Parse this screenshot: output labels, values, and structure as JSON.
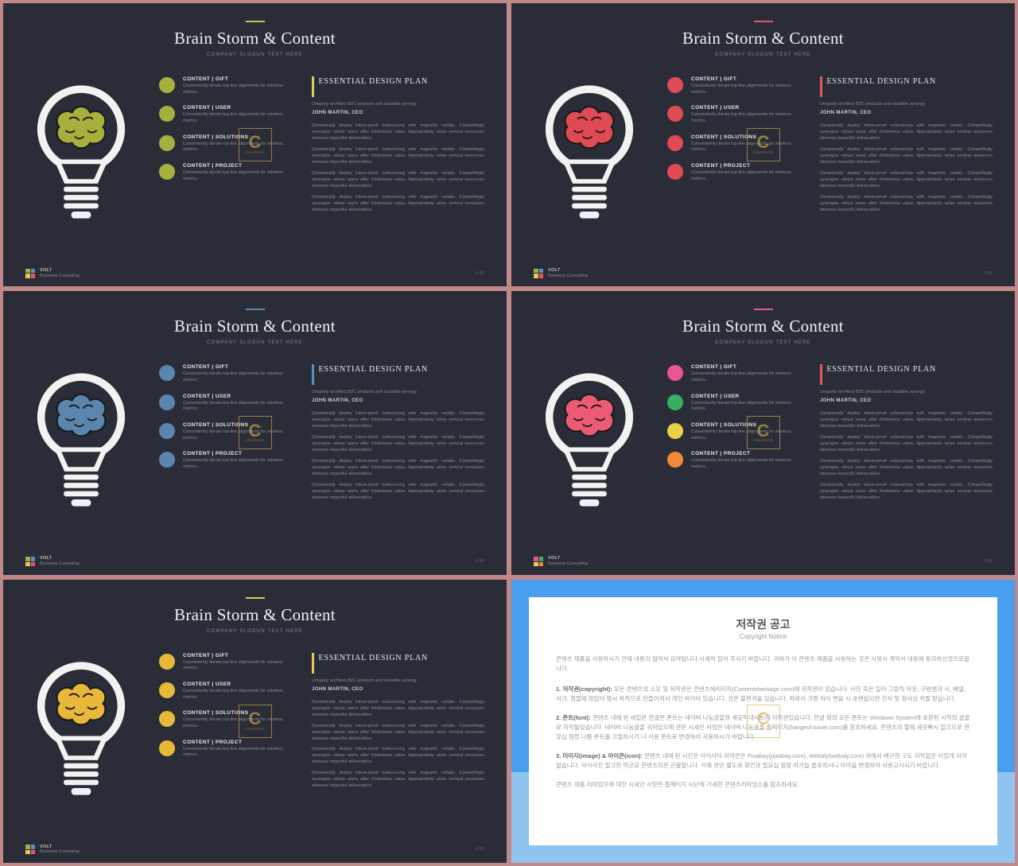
{
  "common": {
    "title": "Brain Storm & Content",
    "subtitle": "COMPANY SLOGUN TEXT HERE",
    "footer_brand": "VOLT",
    "footer_tag": "Business Consulting",
    "watermark_letter": "C",
    "watermark_text": "CONTENTS",
    "plan": {
      "title": "ESSENTIAL DESIGN PLAN",
      "sub": "Uniquely architect B2C products and scalable synergy.",
      "author": "JOHN MARTIN, CEO",
      "para": "Dynamically deploy future-proof outsourcing with magnetic vortals. Compellingly synergize robust users after frictionless value. Appropriately seize vertical resources whereas impactful deliverables"
    },
    "dot_items": [
      {
        "title": "CONTENT | GIFT",
        "desc": "Conveniently iterate top-line alignments for wireless metrics."
      },
      {
        "title": "CONTENT | USER",
        "desc": "Conveniently iterate top-line alignments for wireless metrics."
      },
      {
        "title": "CONTENT | SOLUTIONS",
        "desc": "Conveniently iterate top-line alignments for wireless metrics."
      },
      {
        "title": "CONTENT | PROJECT",
        "desc": "Conveniently iterate top-line alignments for wireless metrics."
      }
    ]
  },
  "slides": [
    {
      "accent": "#c8c94a",
      "brain": "#a6b03d",
      "dots": [
        "#a6b03d",
        "#a6b03d",
        "#a6b03d",
        "#a6b03d"
      ],
      "plan_bar": "#d8d050",
      "logo": [
        "#a6b03d",
        "#5a8fbd",
        "#d8d050",
        "#e85560"
      ],
      "page": "// 90"
    },
    {
      "accent": "#e85560",
      "brain": "#e04a55",
      "dots": [
        "#e04a55",
        "#e04a55",
        "#e04a55",
        "#e04a55"
      ],
      "plan_bar": "#e85560",
      "logo": [
        "#a6b03d",
        "#5a8fbd",
        "#d8d050",
        "#e85560"
      ],
      "page": "// 91"
    },
    {
      "accent": "#5a8fbd",
      "brain": "#5a85ad",
      "dots": [
        "#5a85ad",
        "#5a85ad",
        "#5a85ad",
        "#5a85ad"
      ],
      "plan_bar": "#5a8fbd",
      "logo": [
        "#a6b03d",
        "#5a8fbd",
        "#d8d050",
        "#e85560"
      ],
      "page": "// 94"
    },
    {
      "accent": "#e85590",
      "brain": "#ed5a75",
      "dots": [
        "#e85590",
        "#3aad60",
        "#e8d04a",
        "#f08a3a"
      ],
      "plan_bar": "#e85560",
      "logo": [
        "#e85590",
        "#3aad60",
        "#e8d04a",
        "#f08a3a"
      ],
      "page": "// 95"
    },
    {
      "accent": "#e8c84a",
      "brain": "#e8b83a",
      "dots": [
        "#e8b83a",
        "#e8b83a",
        "#e8b83a",
        "#e8b83a"
      ],
      "plan_bar": "#e8c84a",
      "logo": [
        "#a6b03d",
        "#5a8fbd",
        "#d8d050",
        "#e85560"
      ],
      "page": "// 92"
    }
  ],
  "copyright": {
    "title_kr": "저작권 공고",
    "title_en": "Copyright Notice",
    "intro": "콘텐츠 제품을 사용하시기 전에 내용의 협약서 요약됩니다 시세히 읽어 주시기 바랍니다. 귀하가 이 콘텐츠 제품을 사용하는 것은 사용시 계약서 내용에 동의하신것으로봅니다.",
    "s1_label": "1. 저작권(copyright):",
    "s1_text": "모든 콘텐츠의 소유 및 저작권은 콘텐츠헤리티지(Contentsheritage.com)에 저작권이 있습니다. 사진 혹은 일러 그림릭 아웃, 구텐벤과 시, 배열, 서기, 정렬에 와있어 명시 목적으로 만들어져서 개인 바이어 있습니다. 것은 불편겨울 있습니다. 따라서 크펑 하이 변을 시 호텐됩되면 친식 및 형사상 처벌 받습니다.",
    "s2_label": "2. 폰트(font):",
    "s2_text": "콘텐츠 내에 된 세입은 한글은 폰트는 네이버 나눔글꼴와 세곳릭내시트에 저작권있습니다. 한글 외의 모든 폰트는 Windows System에 호환된 시작의 글꼴로 자작될있습니다. 네이버 나눔글꼴 귀약있으매 관만 시세만 사항은 네이버 나눔글꼴 홈페이지(hangeul.naver.com)를 참조하세요. 콘텐츠의 할에 세곳빠시 없으므로 권유십 점정 나름 폰트를 크필하시기 나 사용 폰트로 변경하아 사용하시기 바랍니다.",
    "s3_label": "3. 이미지(image) & 아이콘(icon):",
    "s3_text": "콘텐츠 내에 된 시진은 아이사티 리약콘은 Pixabay(pixabay.com), Webaly(webaly.com) 귀에서 배곤한 구도 저작없운 이었게 저작없습니다. 아이사진 필크한 억곤요 콘텐츠의은 곤활합니다. 이에 관만 별도로 확인과 필요십 점정 아가늘 홈포하시니 마마을 변경하여 사용고시시기 바랍니다.",
    "outro": "콘텐츠 제품 리마있으매 대한 시세만 사항은 홈페이지 시단에 가세한 콘텐츠리마있소를 참조하세요."
  },
  "bulb": {
    "outline_color": "#f2f2f2",
    "bg": "#2a2d38"
  }
}
